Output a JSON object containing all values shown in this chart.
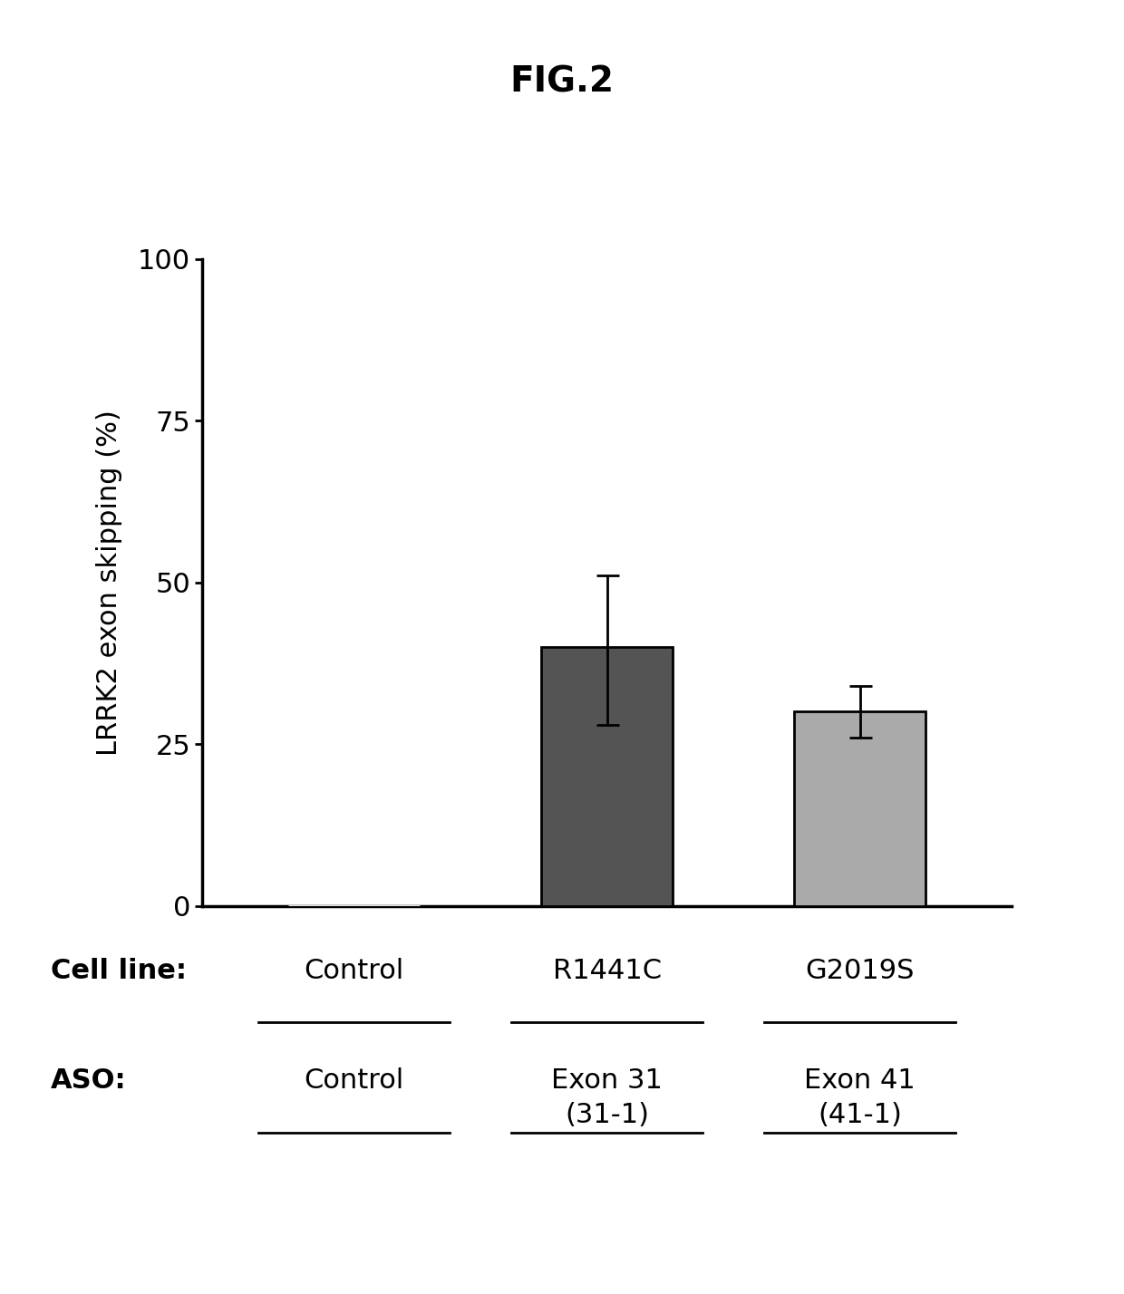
{
  "title": "FIG.2",
  "categories": [
    "Control",
    "R1441C",
    "G2019S"
  ],
  "values": [
    0,
    40,
    30
  ],
  "errors_upper": [
    0,
    11,
    4
  ],
  "errors_lower": [
    0,
    12,
    4
  ],
  "bar_colors": [
    "#ffffff",
    "#545454",
    "#aaaaaa"
  ],
  "bar_edgecolors": [
    "#ffffff",
    "#000000",
    "#000000"
  ],
  "ylabel": "LRRK2 exon skipping (%)",
  "ylim": [
    0,
    100
  ],
  "yticks": [
    0,
    25,
    50,
    75,
    100
  ],
  "cell_line_labels": [
    "Control",
    "R1441C",
    "G2019S"
  ],
  "aso_labels": [
    "Control",
    "Exon 31\n(31-1)",
    "Exon 41\n(41-1)"
  ],
  "cell_line_header": "Cell line:",
  "aso_header": "ASO:",
  "background_color": "#ffffff",
  "bar_width": 0.52
}
